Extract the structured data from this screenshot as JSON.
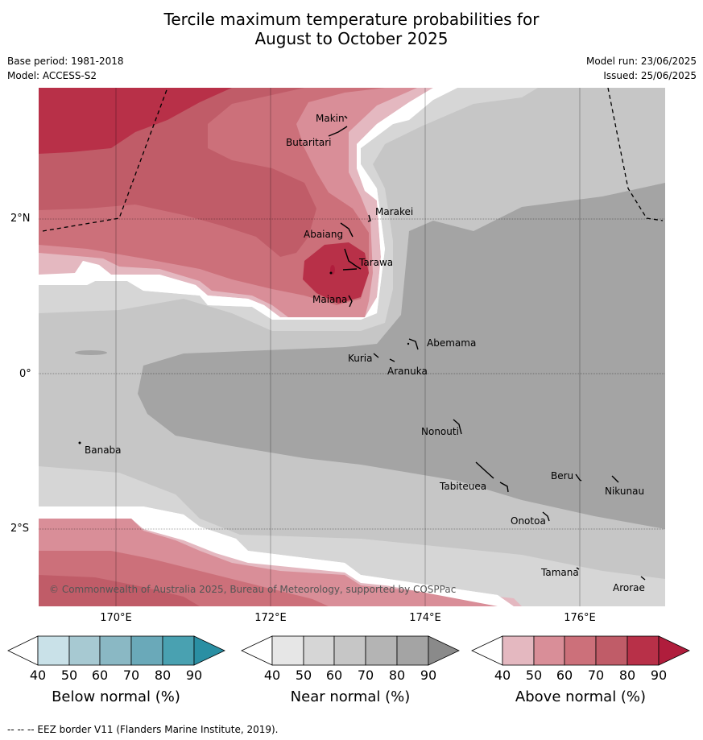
{
  "title_line1": "Tercile maximum temperature probabilities for",
  "title_line2": "August to October 2025",
  "base_period": "Base period: 1981-2018",
  "model": "Model: ACCESS-S2",
  "model_run": "Model run: 23/06/2025",
  "issued": "Issued: 25/06/2025",
  "lat_labels": [
    "2°N",
    "0°",
    "2°S"
  ],
  "lon_labels": [
    "170°E",
    "172°E",
    "174°E",
    "176°E"
  ],
  "places": [
    "Makin",
    "Butaritari",
    "Marakei",
    "Abaiang",
    "Tarawa",
    "Maiana",
    "Abemama",
    "Kuria",
    "Aranuka",
    "Nonouti",
    "Banaba",
    "Beru",
    "Nikunau",
    "Tabiteuea",
    "Onotoa",
    "Tamana",
    "Arorae"
  ],
  "copyright": "© Commonwealth of Australia 2025, Bureau of Meteorology, supported by COSPPac",
  "legends": [
    {
      "title": "Below normal (%)",
      "ticks": [
        "40",
        "50",
        "60",
        "70",
        "80",
        "90"
      ],
      "colors": [
        "#c9e1e8",
        "#a7c9d2",
        "#8ab8c4",
        "#6aa9b9",
        "#49a1b1",
        "#2a8fa3"
      ]
    },
    {
      "title": "Near normal (%)",
      "ticks": [
        "40",
        "50",
        "60",
        "70",
        "80",
        "90"
      ],
      "colors": [
        "#e6e6e6",
        "#d6d6d6",
        "#c6c6c6",
        "#b4b4b4",
        "#a4a4a4",
        "#8a8a8a"
      ]
    },
    {
      "title": "Above normal (%)",
      "ticks": [
        "40",
        "50",
        "60",
        "70",
        "80",
        "90"
      ],
      "colors": [
        "#e4b8c0",
        "#d98e98",
        "#cc707a",
        "#c05c68",
        "#b83048",
        "#b01d3c"
      ]
    }
  ],
  "footnote": "-- -- -- EEZ border V11 (Flanders Marine Institute, 2019)."
}
